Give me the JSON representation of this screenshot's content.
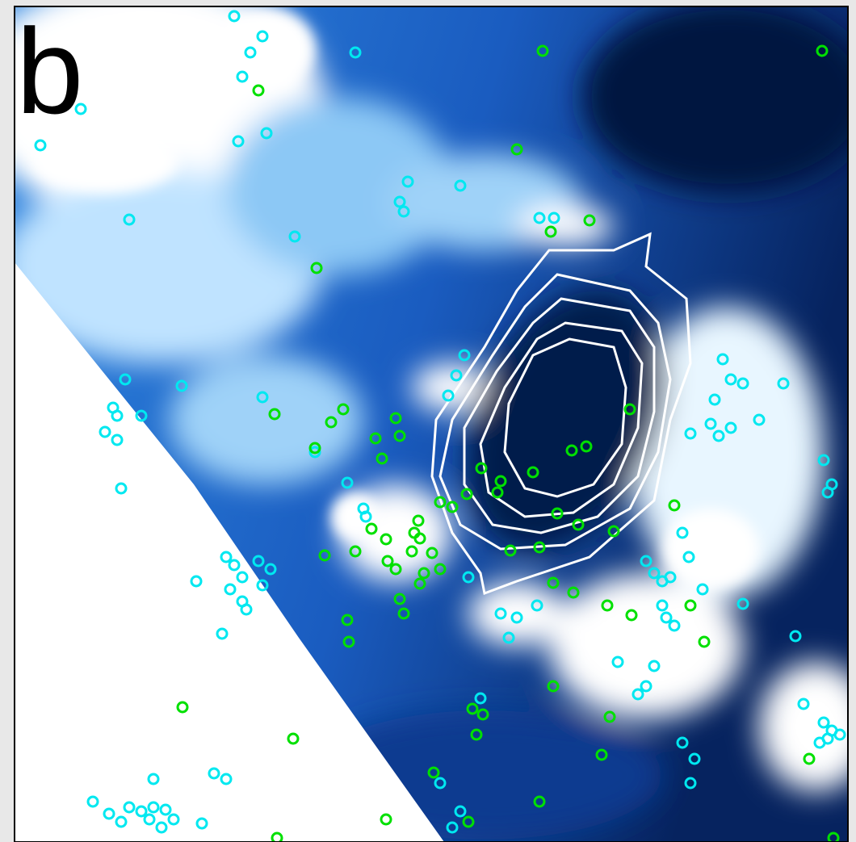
{
  "panel_label": "b"
}
